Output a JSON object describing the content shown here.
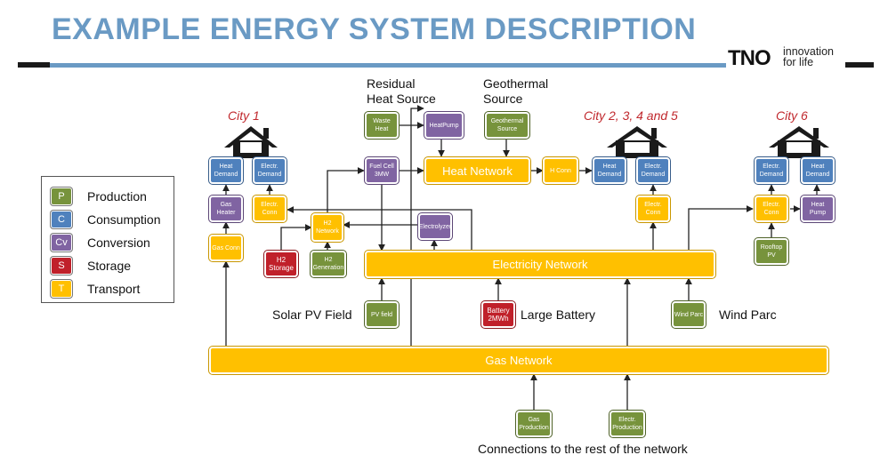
{
  "header": {
    "title": "EXAMPLE ENERGY SYSTEM DESCRIPTION",
    "logo_text": "TNO",
    "logo_tagline_1": "innovation",
    "logo_tagline_2": "for life"
  },
  "legend": [
    {
      "code": "P",
      "label": "Production",
      "color": "#77933c"
    },
    {
      "code": "C",
      "label": "Consumption",
      "color": "#4f81bd"
    },
    {
      "code": "Cv",
      "label": "Conversion",
      "color": "#8064a2"
    },
    {
      "code": "S",
      "label": "Storage",
      "color": "#c0202a"
    },
    {
      "code": "T",
      "label": "Transport",
      "color": "#ffc000"
    }
  ],
  "cities": {
    "city1": "City 1",
    "city2": "City 2, 3, 4 and 5",
    "city6": "City 6"
  },
  "labels": {
    "residual_1": "Residual",
    "residual_2": "Heat Source",
    "geo_1": "Geothermal",
    "geo_2": "Source",
    "solar": "Solar PV Field",
    "battery": "Large Battery",
    "wind": "Wind Parc",
    "connections": "Connections to the rest of the network"
  },
  "nodes": {
    "c1_heat_demand": "Heat Demand",
    "c1_elec_demand": "Electr. Demand",
    "gas_heater": "Gas Heater",
    "c1_elec_conn": "Electr. Conn",
    "gas_conn": "Gas Conn",
    "h2_network": "H2 Network",
    "h2_storage": "H2 Storage",
    "h2_generation": "H2 Generation",
    "fuel_cell": "Fuel Cell 3MW",
    "waste_heat": "Waste Heat",
    "heatpump_top": "HeatPump",
    "geothermal": "Geothermal Source",
    "heat_network": "Heat Network",
    "h_conn": "H Conn",
    "electrolyzer": "Electrolyzer",
    "c2_heat_demand": "Heat Demand",
    "c2_elec_demand": "Electr. Demand",
    "c2_elec_conn": "Electr. Conn",
    "electricity_network": "Electricity Network",
    "pv_field": "PV field",
    "battery": "Battery 2MWh",
    "wind_parc": "Wind Parc",
    "c6_elec_demand": "Electr. Demand",
    "c6_heat_demand": "Heat Demand",
    "c6_elec_conn": "Electr. Conn",
    "c6_heat_pump": "Heat Pump",
    "rooftop_pv": "Rooftop PV",
    "gas_network": "Gas Network",
    "gas_production": "Gas Production",
    "elec_production": "Electr. Production"
  }
}
